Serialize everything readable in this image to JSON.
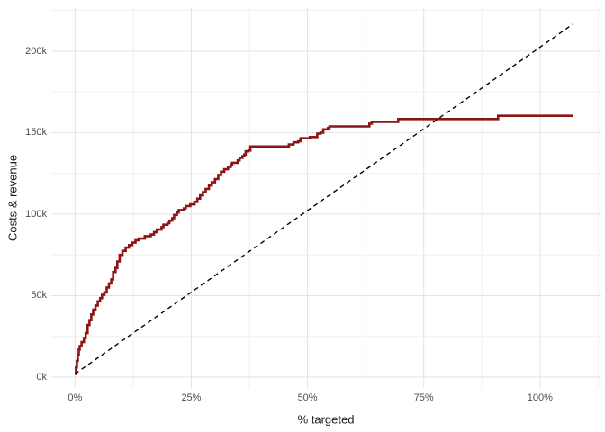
{
  "figure": {
    "background_color": "#FFFFFF",
    "grid_major_color": "#E3E3E3",
    "grid_minor_color": "#F0F0F0",
    "tick_text_color": "#4D4D4D",
    "axis_title_color": "#1A1A1A"
  },
  "chart_data": {
    "type": "line",
    "title": "",
    "xlabel": "% targeted",
    "ylabel": "Costs & revenue",
    "x_unit": "percent",
    "y_unit": "thousands",
    "grid": "on",
    "legend": "none",
    "xlim": [
      -5.1,
      113.2
    ],
    "ylim": [
      -6.6,
      226.4
    ],
    "x_ticks": [
      {
        "value": 0,
        "label": "0%"
      },
      {
        "value": 25,
        "label": "25%"
      },
      {
        "value": 50,
        "label": "50%"
      },
      {
        "value": 75,
        "label": "75%"
      },
      {
        "value": 100,
        "label": "100%"
      }
    ],
    "y_ticks": [
      {
        "value": 0,
        "label": "0k"
      },
      {
        "value": 50,
        "label": "50k"
      },
      {
        "value": 100,
        "label": "100k"
      },
      {
        "value": 150,
        "label": "150k"
      },
      {
        "value": 200,
        "label": "200k"
      }
    ],
    "x_minor": [
      12.5,
      37.5,
      62.5,
      87.5,
      112.5
    ],
    "y_minor": [
      25,
      75,
      125,
      175,
      225
    ],
    "series": [
      {
        "name": "revenue-step-curve",
        "draw": "step-after",
        "color": "#8B1414",
        "width": 2.6,
        "dash": "none",
        "points": [
          [
            0,
            2
          ],
          [
            0.2,
            6
          ],
          [
            0.4,
            10
          ],
          [
            0.6,
            14
          ],
          [
            0.8,
            17
          ],
          [
            1.0,
            19
          ],
          [
            1.4,
            21.5
          ],
          [
            1.9,
            24
          ],
          [
            2.3,
            27
          ],
          [
            2.7,
            32
          ],
          [
            3.1,
            35
          ],
          [
            3.5,
            38.5
          ],
          [
            3.9,
            41.5
          ],
          [
            4.4,
            44
          ],
          [
            4.9,
            46.5
          ],
          [
            5.4,
            48.5
          ],
          [
            5.8,
            50.5
          ],
          [
            6.3,
            52
          ],
          [
            6.8,
            55
          ],
          [
            7.3,
            57.5
          ],
          [
            7.8,
            60
          ],
          [
            8.2,
            64.5
          ],
          [
            8.7,
            67
          ],
          [
            9.1,
            71
          ],
          [
            9.6,
            75
          ],
          [
            10.2,
            77.5
          ],
          [
            10.9,
            79.5
          ],
          [
            11.6,
            81
          ],
          [
            12.3,
            82.5
          ],
          [
            13,
            84
          ],
          [
            13.7,
            85
          ],
          [
            15,
            86.5
          ],
          [
            16.3,
            87.5
          ],
          [
            17,
            89
          ],
          [
            17.6,
            90.5
          ],
          [
            18.6,
            92
          ],
          [
            19,
            93.5
          ],
          [
            19.9,
            94.5
          ],
          [
            20.3,
            96
          ],
          [
            20.9,
            97.5
          ],
          [
            21.3,
            99.5
          ],
          [
            21.9,
            101
          ],
          [
            22.3,
            102.5
          ],
          [
            23.4,
            103.5
          ],
          [
            23.8,
            105
          ],
          [
            24.8,
            106
          ],
          [
            25.7,
            107.5
          ],
          [
            26.3,
            109.5
          ],
          [
            26.9,
            111.5
          ],
          [
            27.5,
            113.5
          ],
          [
            28.1,
            115.5
          ],
          [
            28.8,
            117.5
          ],
          [
            29.4,
            119.5
          ],
          [
            30.1,
            121.5
          ],
          [
            30.8,
            124
          ],
          [
            31.4,
            126
          ],
          [
            32.1,
            127.5
          ],
          [
            32.9,
            129
          ],
          [
            33.5,
            130.5
          ],
          [
            33.8,
            131.5
          ],
          [
            35,
            133
          ],
          [
            35.4,
            134.5
          ],
          [
            36,
            135.5
          ],
          [
            36.4,
            136.5
          ],
          [
            36.7,
            138.5
          ],
          [
            37.3,
            139
          ],
          [
            37.7,
            141.5
          ],
          [
            46,
            142.7
          ],
          [
            47,
            144
          ],
          [
            48,
            144.7
          ],
          [
            48.5,
            146.5
          ],
          [
            50.5,
            147.3
          ],
          [
            52.1,
            149.3
          ],
          [
            52.8,
            150
          ],
          [
            53.4,
            152
          ],
          [
            54.4,
            152.8
          ],
          [
            54.7,
            153.8
          ],
          [
            63.3,
            155.5
          ],
          [
            63.8,
            156.6
          ],
          [
            69.5,
            158.3
          ],
          [
            91,
            160.3
          ],
          [
            107,
            160.3
          ]
        ]
      },
      {
        "name": "cost-dashed-line",
        "draw": "line",
        "color": "#000000",
        "width": 1.4,
        "dash": "5,4",
        "points": [
          [
            0,
            2
          ],
          [
            107,
            216.4
          ]
        ]
      }
    ]
  }
}
